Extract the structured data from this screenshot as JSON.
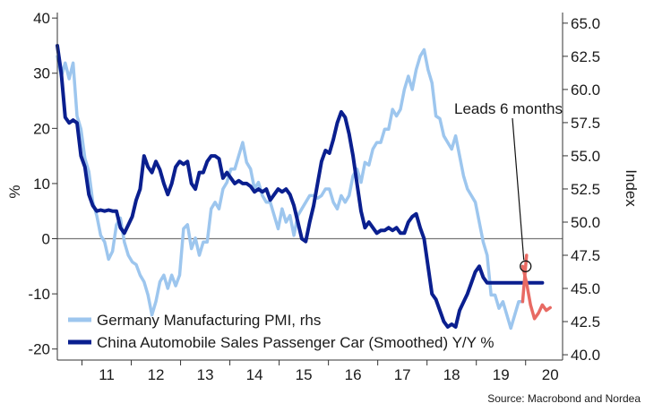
{
  "chart_data": {
    "type": "line",
    "xlabel": "",
    "ylabel": "%",
    "ylabel_right": "Index",
    "ylim": [
      -22,
      41
    ],
    "ylim_right": [
      39.6,
      65.8
    ],
    "xlim": [
      2010.5,
      2020.75
    ],
    "y_ticks": [
      -20,
      -10,
      0,
      10,
      20,
      30,
      40
    ],
    "y_ticks_right": [
      "40.0",
      "42.5",
      "45.0",
      "47.5",
      "50.0",
      "52.5",
      "55.0",
      "57.5",
      "60.0",
      "62.5",
      "65.0"
    ],
    "x_ticks": [
      {
        "label": "11",
        "value": 2011.5
      },
      {
        "label": "12",
        "value": 2012.5
      },
      {
        "label": "13",
        "value": 2013.5
      },
      {
        "label": "14",
        "value": 2014.5
      },
      {
        "label": "15",
        "value": 2015.5
      },
      {
        "label": "16",
        "value": 2016.5
      },
      {
        "label": "17",
        "value": 2017.5
      },
      {
        "label": "18",
        "value": 2018.5
      },
      {
        "label": "19",
        "value": 2019.5
      },
      {
        "label": "20",
        "value": 2020.5
      }
    ],
    "grid": false,
    "legend_position": "bottom-left",
    "annotation": {
      "text": "Leads 6 months",
      "x": 2020.0,
      "y": -5.0
    },
    "source": "Source: Macrobond and Nordea",
    "colors": {
      "germany": "#9dc6ee",
      "china": "#0a1f8f",
      "lead": "#e86a63",
      "zero": "#777777"
    },
    "series": [
      {
        "name": "Germany Manufacturing PMI, rhs",
        "axis": "right",
        "color": "#9dc6ee",
        "x": [
          2010.5,
          2010.58,
          2010.66,
          2010.74,
          2010.82,
          2010.9,
          2010.98,
          2011.06,
          2011.14,
          2011.22,
          2011.3,
          2011.38,
          2011.46,
          2011.54,
          2011.62,
          2011.7,
          2011.78,
          2011.86,
          2011.94,
          2012.02,
          2012.1,
          2012.18,
          2012.26,
          2012.34,
          2012.42,
          2012.5,
          2012.58,
          2012.66,
          2012.74,
          2012.82,
          2012.9,
          2012.98,
          2013.06,
          2013.14,
          2013.22,
          2013.3,
          2013.38,
          2013.46,
          2013.54,
          2013.62,
          2013.7,
          2013.78,
          2013.86,
          2013.94,
          2014.02,
          2014.1,
          2014.18,
          2014.26,
          2014.34,
          2014.42,
          2014.5,
          2014.58,
          2014.66,
          2014.74,
          2014.82,
          2014.9,
          2014.98,
          2015.06,
          2015.14,
          2015.22,
          2015.3,
          2015.38,
          2015.46,
          2015.54,
          2015.62,
          2015.7,
          2015.78,
          2015.86,
          2015.94,
          2016.02,
          2016.1,
          2016.18,
          2016.26,
          2016.34,
          2016.42,
          2016.5,
          2016.58,
          2016.66,
          2016.74,
          2016.82,
          2016.9,
          2016.98,
          2017.06,
          2017.14,
          2017.22,
          2017.3,
          2017.38,
          2017.46,
          2017.54,
          2017.62,
          2017.7,
          2017.78,
          2017.86,
          2017.94,
          2018.02,
          2018.1,
          2018.18,
          2018.26,
          2018.34,
          2018.42,
          2018.5,
          2018.58,
          2018.66,
          2018.74,
          2018.82,
          2018.9,
          2018.98,
          2019.06,
          2019.14,
          2019.22,
          2019.3,
          2019.38,
          2019.46,
          2019.54,
          2019.62,
          2019.7,
          2019.78,
          2019.86,
          2019.94
        ],
        "values": [
          62.5,
          61.0,
          62.0,
          60.8,
          62.0,
          58.0,
          57.0,
          54.8,
          53.8,
          51.5,
          50.5,
          49.0,
          48.5,
          47.2,
          47.8,
          49.8,
          50.3,
          48.5,
          47.5,
          47.0,
          46.8,
          46.0,
          45.5,
          44.5,
          43.0,
          44.0,
          45.5,
          46.0,
          45.0,
          46.0,
          45.2,
          46.0,
          49.5,
          49.8,
          48.0,
          48.8,
          47.5,
          48.5,
          48.5,
          51.0,
          51.5,
          51.0,
          52.5,
          53.0,
          54.0,
          54.0,
          55.0,
          56.0,
          54.5,
          54.0,
          52.5,
          53.0,
          52.0,
          51.5,
          51.5,
          50.5,
          49.5,
          51.0,
          50.0,
          50.5,
          49.0,
          50.5,
          51.0,
          51.5,
          52.0,
          52.0,
          51.8,
          52.0,
          52.5,
          52.5,
          51.5,
          51.0,
          52.0,
          51.5,
          52.0,
          53.5,
          54.0,
          53.0,
          54.5,
          54.3,
          55.5,
          56.0,
          56.0,
          57.0,
          57.0,
          58.5,
          58.0,
          58.5,
          60.0,
          61.0,
          60.0,
          61.5,
          62.5,
          63.0,
          61.5,
          60.5,
          58.0,
          57.8,
          56.5,
          56.0,
          55.5,
          56.5,
          55.0,
          53.5,
          52.5,
          52.0,
          51.5,
          50.0,
          48.5,
          47.5,
          44.5,
          44.5,
          43.5,
          44.0,
          43.0,
          42.0,
          43.0,
          44.0,
          44.0
        ]
      },
      {
        "name": "China Automobile Sales Passenger Car (Smoothed) Y/Y %",
        "axis": "left",
        "color": "#0a1f8f",
        "x": [
          2010.5,
          2010.58,
          2010.66,
          2010.74,
          2010.82,
          2010.9,
          2010.98,
          2011.06,
          2011.14,
          2011.22,
          2011.3,
          2011.38,
          2011.46,
          2011.54,
          2011.62,
          2011.7,
          2011.78,
          2011.86,
          2011.94,
          2012.02,
          2012.1,
          2012.18,
          2012.26,
          2012.34,
          2012.42,
          2012.5,
          2012.58,
          2012.66,
          2012.74,
          2012.82,
          2012.9,
          2012.98,
          2013.06,
          2013.14,
          2013.22,
          2013.3,
          2013.38,
          2013.46,
          2013.54,
          2013.62,
          2013.7,
          2013.78,
          2013.86,
          2013.94,
          2014.02,
          2014.1,
          2014.18,
          2014.26,
          2014.34,
          2014.42,
          2014.5,
          2014.58,
          2014.66,
          2014.74,
          2014.82,
          2014.9,
          2014.98,
          2015.06,
          2015.14,
          2015.22,
          2015.3,
          2015.38,
          2015.46,
          2015.54,
          2015.62,
          2015.7,
          2015.78,
          2015.86,
          2015.94,
          2016.02,
          2016.1,
          2016.18,
          2016.26,
          2016.34,
          2016.42,
          2016.5,
          2016.58,
          2016.66,
          2016.74,
          2016.82,
          2016.9,
          2016.98,
          2017.06,
          2017.14,
          2017.22,
          2017.3,
          2017.38,
          2017.46,
          2017.54,
          2017.62,
          2017.7,
          2017.78,
          2017.86,
          2017.94,
          2018.02,
          2018.1,
          2018.18,
          2018.26,
          2018.34,
          2018.42,
          2018.5,
          2018.58,
          2018.66,
          2018.74,
          2018.82,
          2018.9,
          2018.98,
          2019.06,
          2019.14,
          2019.22,
          2019.3,
          2019.38,
          2019.46,
          2019.54,
          2019.62,
          2019.7,
          2019.78,
          2019.86,
          2019.94,
          2020.02,
          2020.1,
          2020.18,
          2020.26,
          2020.34
        ],
        "values": [
          35.0,
          30.0,
          22.0,
          21.0,
          21.5,
          21.0,
          15.0,
          13.0,
          8.0,
          6.0,
          5.0,
          5.2,
          5.0,
          5.2,
          5.0,
          5.0,
          2.0,
          1.0,
          2.5,
          4.0,
          7.0,
          9.0,
          15.0,
          13.0,
          12.0,
          14.0,
          12.5,
          10.0,
          8.0,
          10.0,
          13.0,
          14.0,
          13.5,
          14.0,
          10.0,
          9.0,
          12.0,
          12.0,
          14.0,
          15.0,
          15.0,
          14.5,
          11.0,
          12.0,
          11.0,
          10.0,
          10.5,
          10.0,
          10.0,
          9.5,
          8.5,
          9.0,
          8.5,
          9.0,
          7.0,
          8.0,
          9.0,
          8.5,
          9.0,
          8.0,
          6.0,
          3.0,
          0.0,
          -0.5,
          3.0,
          6.0,
          10.0,
          14.0,
          16.0,
          15.5,
          18.0,
          21.0,
          23.0,
          22.0,
          19.0,
          15.0,
          10.0,
          5.0,
          2.0,
          3.0,
          2.0,
          1.0,
          1.5,
          1.5,
          2.0,
          1.5,
          2.0,
          1.0,
          1.0,
          3.0,
          4.0,
          4.5,
          2.0,
          0.0,
          -5.0,
          -10.0,
          -11.0,
          -13.0,
          -15.0,
          -16.0,
          -15.5,
          -16.0,
          -13.0,
          -11.5,
          -10.0,
          -8.0,
          -6.0,
          -5.0,
          -7.0,
          -8.0,
          -8.0,
          -8.0,
          -8.0,
          -8.0,
          -8.0,
          -8.0,
          -8.0,
          -8.0,
          -8.0,
          -8.0,
          -8.0,
          -8.0,
          -8.0,
          -8.0
        ]
      },
      {
        "name": "",
        "axis": "right",
        "color": "#e86a63",
        "x": [
          2019.94,
          2020.02
        ],
        "values": [
          44.0,
          47.5
        ]
      },
      {
        "name": "",
        "axis": "left",
        "color": "#e86a63",
        "x": [
          2019.94,
          2020.02,
          2020.1,
          2020.18,
          2020.26,
          2020.34,
          2020.42,
          2020.5
        ],
        "values": [
          -5.0,
          -8.0,
          -12.0,
          -14.5,
          -13.5,
          -12.0,
          -13.0,
          -12.5
        ]
      }
    ],
    "legend": [
      {
        "text": "Germany Manufacturing PMI, rhs",
        "color": "#9dc6ee"
      },
      {
        "text": "China Automobile Sales Passenger Car (Smoothed) Y/Y %",
        "color": "#0a1f8f"
      }
    ]
  }
}
